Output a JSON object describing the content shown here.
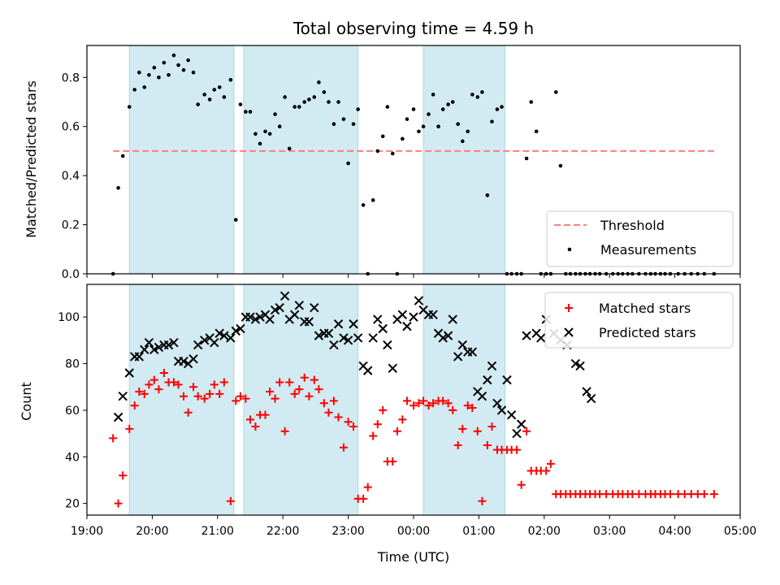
{
  "figure": {
    "title": "Total observing time = 4.59 h",
    "xlabel": "Time (UTC)"
  },
  "colors": {
    "shade": "#add8e6",
    "threshold": "#ff7f7f",
    "measurement": "#000000",
    "matched": "#ff0000",
    "predicted": "#000000"
  },
  "chart_data": [
    {
      "type": "scatter",
      "name": "ratio-panel",
      "ylabel": "Matched/Predicted stars",
      "xlim": [
        19.0,
        29.0
      ],
      "ylim": [
        0.0,
        0.93
      ],
      "yticks": [
        0.0,
        0.2,
        0.4,
        0.6,
        0.8
      ],
      "ytick_labels": [
        "0.0",
        "0.2",
        "0.4",
        "0.6",
        "0.8"
      ],
      "shaded_intervals": [
        [
          19.65,
          21.25
        ],
        [
          21.4,
          23.15
        ],
        [
          24.15,
          25.4
        ]
      ],
      "threshold": {
        "label": "Threshold",
        "value": 0.5,
        "x_start": 19.4,
        "x_end": 28.6
      },
      "legend": {
        "position": "lower-right",
        "entries": [
          "Threshold",
          "Measurements"
        ]
      },
      "series": [
        {
          "name": "Measurements",
          "x": [
            19.4,
            19.48,
            19.55,
            19.65,
            19.73,
            19.8,
            19.88,
            19.95,
            20.03,
            20.1,
            20.18,
            20.25,
            20.33,
            20.4,
            20.48,
            20.55,
            20.63,
            20.7,
            20.8,
            20.88,
            20.95,
            21.03,
            21.1,
            21.2,
            21.28,
            21.35,
            21.43,
            21.5,
            21.58,
            21.65,
            21.73,
            21.8,
            21.88,
            21.95,
            22.03,
            22.1,
            22.18,
            22.25,
            22.33,
            22.4,
            22.48,
            22.55,
            22.63,
            22.7,
            22.78,
            22.85,
            22.93,
            23.0,
            23.08,
            23.15,
            23.23,
            23.3,
            23.38,
            23.45,
            23.53,
            23.6,
            23.68,
            23.75,
            23.83,
            23.9,
            24.0,
            24.08,
            24.15,
            24.23,
            24.3,
            24.38,
            24.45,
            24.53,
            24.6,
            24.68,
            24.75,
            24.83,
            24.9,
            24.98,
            25.05,
            25.13,
            25.2,
            25.28,
            25.35,
            25.43,
            25.5,
            25.58,
            25.65,
            25.73,
            25.8,
            25.88,
            25.95,
            26.03,
            26.1,
            26.18,
            26.25,
            26.33,
            26.4,
            26.48,
            26.55,
            26.63,
            26.7,
            26.78,
            26.85,
            26.95,
            27.05,
            27.13,
            27.2,
            27.28,
            27.35,
            27.45,
            27.55,
            27.63,
            27.7,
            27.78,
            27.85,
            27.93,
            28.05,
            28.15,
            28.25,
            28.35,
            28.45,
            28.6
          ],
          "y": [
            0.0,
            0.35,
            0.48,
            0.68,
            0.75,
            0.82,
            0.76,
            0.81,
            0.84,
            0.8,
            0.86,
            0.81,
            0.89,
            0.85,
            0.83,
            0.87,
            0.82,
            0.69,
            0.73,
            0.71,
            0.75,
            0.76,
            0.72,
            0.79,
            0.22,
            0.69,
            0.66,
            0.66,
            0.57,
            0.53,
            0.58,
            0.57,
            0.65,
            0.6,
            0.72,
            0.51,
            0.68,
            0.68,
            0.7,
            0.71,
            0.72,
            0.78,
            0.74,
            0.7,
            0.61,
            0.7,
            0.63,
            0.45,
            0.61,
            0.67,
            0.28,
            0.0,
            0.3,
            0.5,
            0.56,
            0.68,
            0.49,
            0.0,
            0.55,
            0.63,
            0.67,
            0.58,
            0.6,
            0.65,
            0.73,
            0.6,
            0.67,
            0.69,
            0.7,
            0.61,
            0.54,
            0.58,
            0.73,
            0.72,
            0.74,
            0.32,
            0.62,
            0.67,
            0.68,
            0.0,
            0.0,
            0.0,
            0.0,
            0.47,
            0.7,
            0.58,
            0.0,
            0.0,
            0.0,
            0.74,
            0.44,
            0.0,
            0.0,
            0.0,
            0.0,
            0.0,
            0.0,
            0.0,
            0.0,
            0.0,
            0.0,
            0.0,
            0.0,
            0.0,
            0.0,
            0.0,
            0.0,
            0.0,
            0.0,
            0.0,
            0.0,
            0.0,
            0.0,
            0.0,
            0.0,
            0.0,
            0.0,
            0.0
          ]
        }
      ]
    },
    {
      "type": "scatter",
      "name": "count-panel",
      "ylabel": "Count",
      "xlim": [
        19.0,
        29.0
      ],
      "ylim": [
        15,
        114
      ],
      "yticks": [
        20,
        40,
        60,
        80,
        100
      ],
      "ytick_labels": [
        "20",
        "40",
        "60",
        "80",
        "100"
      ],
      "xticks": [
        19,
        20,
        21,
        22,
        23,
        24,
        25,
        26,
        27,
        28,
        29
      ],
      "xtick_labels": [
        "19:00",
        "20:00",
        "21:00",
        "22:00",
        "23:00",
        "00:00",
        "01:00",
        "02:00",
        "03:00",
        "04:00",
        "05:00"
      ],
      "shaded_intervals": [
        [
          19.65,
          21.25
        ],
        [
          21.4,
          23.15
        ],
        [
          24.15,
          25.4
        ]
      ],
      "legend": {
        "position": "top-right",
        "entries": [
          "Matched stars",
          "Predicted stars"
        ]
      },
      "series": [
        {
          "name": "Matched stars",
          "x": [
            19.4,
            19.48,
            19.55,
            19.65,
            19.73,
            19.8,
            19.88,
            19.95,
            20.03,
            20.1,
            20.18,
            20.25,
            20.33,
            20.4,
            20.48,
            20.55,
            20.63,
            20.7,
            20.8,
            20.88,
            20.95,
            21.03,
            21.1,
            21.2,
            21.28,
            21.35,
            21.43,
            21.5,
            21.58,
            21.65,
            21.73,
            21.8,
            21.88,
            21.95,
            22.03,
            22.1,
            22.18,
            22.25,
            22.33,
            22.4,
            22.48,
            22.55,
            22.63,
            22.7,
            22.78,
            22.85,
            22.93,
            23.0,
            23.08,
            23.15,
            23.23,
            23.3,
            23.38,
            23.45,
            23.53,
            23.6,
            23.68,
            23.75,
            23.83,
            23.9,
            24.0,
            24.08,
            24.15,
            24.23,
            24.3,
            24.38,
            24.45,
            24.53,
            24.6,
            24.68,
            24.75,
            24.83,
            24.9,
            24.98,
            25.05,
            25.13,
            25.2,
            25.28,
            25.35,
            25.43,
            25.5,
            25.58,
            25.65,
            25.73,
            25.8,
            25.88,
            25.95,
            26.03,
            26.1,
            26.18,
            26.25,
            26.33,
            26.4,
            26.48,
            26.55,
            26.63,
            26.7,
            26.78,
            26.85,
            26.95,
            27.05,
            27.13,
            27.2,
            27.28,
            27.35,
            27.45,
            27.55,
            27.63,
            27.7,
            27.78,
            27.85,
            27.93,
            28.05,
            28.15,
            28.25,
            28.35,
            28.45,
            28.6
          ],
          "y": [
            48,
            20,
            32,
            52,
            62,
            68,
            67,
            71,
            73,
            69,
            76,
            72,
            72,
            71,
            66,
            59,
            70,
            66,
            65,
            67,
            71,
            67,
            72,
            21,
            64,
            66,
            65,
            56,
            53,
            58,
            58,
            68,
            65,
            72,
            51,
            72,
            67,
            69,
            74,
            66,
            73,
            69,
            63,
            59,
            64,
            57,
            44,
            55,
            53,
            22,
            22,
            27,
            49,
            54,
            60,
            38,
            38,
            51,
            56,
            64,
            62,
            63,
            64,
            62,
            63,
            64,
            64,
            63,
            60,
            45,
            52,
            62,
            61,
            51,
            21,
            45,
            53,
            43,
            43,
            43,
            43,
            43,
            28,
            51,
            34,
            34,
            34,
            34,
            37,
            24,
            24,
            24,
            24,
            24,
            24,
            24,
            24,
            24,
            24,
            24,
            24,
            24,
            24,
            24,
            24,
            24,
            24,
            24,
            24,
            24,
            24,
            24,
            24,
            24,
            24,
            24,
            24,
            24
          ]
        },
        {
          "name": "Predicted stars",
          "x": [
            19.48,
            19.55,
            19.65,
            19.73,
            19.8,
            19.88,
            19.95,
            20.03,
            20.1,
            20.18,
            20.25,
            20.33,
            20.4,
            20.48,
            20.55,
            20.63,
            20.7,
            20.8,
            20.88,
            20.95,
            21.03,
            21.1,
            21.2,
            21.28,
            21.35,
            21.43,
            21.5,
            21.58,
            21.65,
            21.73,
            21.8,
            21.88,
            21.95,
            22.03,
            22.1,
            22.18,
            22.25,
            22.33,
            22.4,
            22.48,
            22.55,
            22.63,
            22.7,
            22.78,
            22.85,
            22.93,
            23.0,
            23.08,
            23.15,
            23.23,
            23.3,
            23.38,
            23.45,
            23.53,
            23.6,
            23.68,
            23.75,
            23.83,
            23.9,
            24.0,
            24.08,
            24.15,
            24.23,
            24.3,
            24.38,
            24.45,
            24.53,
            24.6,
            24.68,
            24.75,
            24.83,
            24.9,
            24.98,
            25.05,
            25.13,
            25.2,
            25.28,
            25.35,
            25.43,
            25.5,
            25.58,
            25.65,
            25.73,
            25.88,
            25.95,
            26.03,
            26.15,
            26.25,
            26.35,
            26.48,
            26.55,
            26.65,
            26.72
          ],
          "y": [
            57,
            66,
            76,
            83,
            83,
            86,
            89,
            86,
            87,
            88,
            88,
            89,
            81,
            81,
            80,
            82,
            88,
            90,
            91,
            89,
            93,
            92,
            91,
            94,
            95,
            100,
            100,
            99,
            100,
            101,
            99,
            103,
            104,
            109,
            99,
            101,
            105,
            98,
            98,
            104,
            92,
            93,
            93,
            88,
            97,
            91,
            90,
            97,
            91,
            79,
            77,
            91,
            99,
            95,
            88,
            78,
            99,
            101,
            96,
            100,
            107,
            103,
            101,
            101,
            93,
            91,
            92,
            99,
            83,
            88,
            85,
            85,
            68,
            66,
            73,
            79,
            63,
            60,
            73,
            58,
            50,
            54,
            92,
            93,
            91,
            99,
            93,
            90,
            88,
            80,
            79,
            68,
            65
          ]
        }
      ]
    }
  ]
}
